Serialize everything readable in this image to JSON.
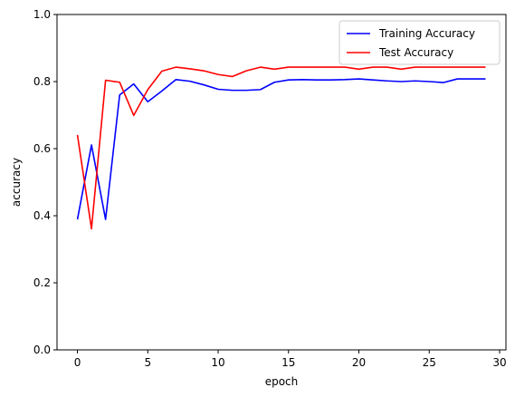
{
  "chart_data": {
    "type": "line",
    "xlabel": "epoch",
    "ylabel": "accuracy",
    "xlim": [
      -1.45,
      30.45
    ],
    "ylim": [
      0,
      1.0
    ],
    "xticks": [
      0,
      5,
      10,
      15,
      20,
      25,
      30
    ],
    "yticks": [
      0.0,
      0.2,
      0.4,
      0.6,
      0.8,
      1.0
    ],
    "xtick_labels": [
      "0",
      "5",
      "10",
      "15",
      "20",
      "25",
      "30"
    ],
    "ytick_labels": [
      "0.0",
      "0.2",
      "0.4",
      "0.6",
      "0.8",
      "1.0"
    ],
    "grid": false,
    "legend_position": "top-right",
    "x": [
      0,
      1,
      2,
      3,
      4,
      5,
      6,
      7,
      8,
      9,
      10,
      11,
      12,
      13,
      14,
      15,
      16,
      17,
      18,
      19,
      20,
      21,
      22,
      23,
      24,
      25,
      26,
      27,
      28,
      29
    ],
    "series": [
      {
        "name": "Training Accuracy",
        "color": "#0000ff",
        "values": [
          0.389,
          0.611,
          0.389,
          0.76,
          0.793,
          0.74,
          0.772,
          0.806,
          0.801,
          0.79,
          0.777,
          0.774,
          0.774,
          0.776,
          0.798,
          0.805,
          0.806,
          0.805,
          0.805,
          0.806,
          0.808,
          0.805,
          0.802,
          0.8,
          0.802,
          0.8,
          0.797,
          0.808,
          0.808,
          0.808
        ]
      },
      {
        "name": "Test Accuracy",
        "color": "#ff0000",
        "values": [
          0.641,
          0.361,
          0.804,
          0.798,
          0.699,
          0.776,
          0.831,
          0.843,
          0.838,
          0.832,
          0.821,
          0.815,
          0.832,
          0.843,
          0.837,
          0.843,
          0.843,
          0.843,
          0.843,
          0.843,
          0.837,
          0.843,
          0.843,
          0.837,
          0.843,
          0.843,
          0.843,
          0.843,
          0.843,
          0.843
        ]
      }
    ]
  }
}
